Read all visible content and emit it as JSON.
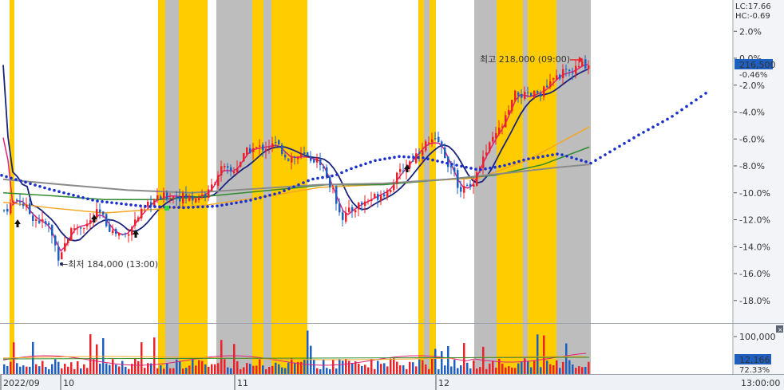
{
  "chart_data": {
    "type": "candlestick",
    "title": "",
    "indicators": {
      "lc_label": "LC:17.66",
      "hc_label": "HC:-0.69",
      "price_label": "216,500",
      "price_change_label": "-0.46%"
    },
    "annotations": {
      "high_label": "최고 218,000 (09:00)",
      "low_label": "←최저 184,000 (13:00)"
    },
    "y_axis": {
      "ticks": [
        "2.0%",
        "0.0%",
        "-2.0%",
        "-4.0%",
        "-6.0%",
        "-8.0%",
        "-10.0%",
        "-12.0%",
        "-14.0%",
        "-16.0%",
        "-18.0%"
      ],
      "range": [
        -20.0,
        4.0
      ]
    },
    "volume_axis": {
      "tick": "100,000",
      "current_label": "12,166",
      "ratio_label": "72.33%"
    },
    "x_axis": {
      "labels": [
        "2022/09",
        "10",
        "11",
        "12",
        "13:00:00"
      ]
    },
    "legend_placement": "none",
    "grid": false,
    "colors": {
      "up": "#e8232a",
      "down": "#1f5fbf",
      "band_yellow": "#ffcc00",
      "band_gray": "#bdbdbd",
      "ma_magenta": "#e0217c",
      "ma_navy": "#1a237e",
      "ma_orange": "#f5a623",
      "ma_green": "#2e8b2e",
      "ma_gray": "#8a8a8a",
      "dots": "#1a2fcc"
    }
  }
}
